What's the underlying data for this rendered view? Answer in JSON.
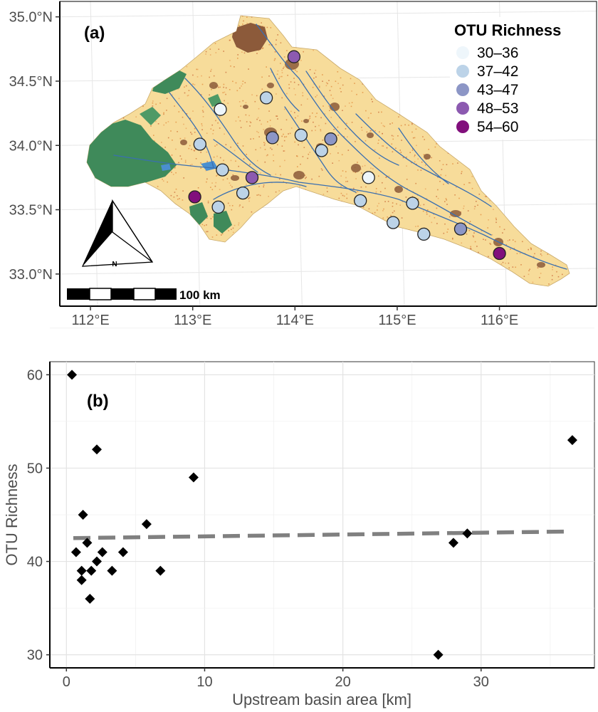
{
  "chart_data": [
    {
      "type": "scatter",
      "panel_label": "(a)",
      "map_kind": "river basin sampling-site map",
      "x_ticks": [
        "112°E",
        "113°E",
        "114°E",
        "115°E",
        "116°E"
      ],
      "y_ticks": [
        "33.0°N",
        "33.5°N",
        "34.0°N",
        "34.5°N",
        "35.0°N"
      ],
      "xlim": [
        111.7,
        116.95
      ],
      "ylim": [
        32.75,
        35.12
      ],
      "legend": {
        "title": "OTU Richness",
        "placement": "top-right",
        "classes": [
          {
            "label": "30–36",
            "color": "#eef6fb"
          },
          {
            "label": "37–42",
            "color": "#bcd3e8"
          },
          {
            "label": "43–47",
            "color": "#8c96c6"
          },
          {
            "label": "48–53",
            "color": "#8c5ab0"
          },
          {
            "label": "54–60",
            "color": "#810f7c"
          }
        ]
      },
      "scale_bar": "100 km",
      "north_label": "N",
      "sites": [
        {
          "lon": 113.27,
          "lat": 34.28,
          "cls": 0
        },
        {
          "lon": 113.72,
          "lat": 34.37,
          "cls": 1
        },
        {
          "lon": 113.99,
          "lat": 34.69,
          "cls": 3
        },
        {
          "lon": 113.07,
          "lat": 34.01,
          "cls": 1
        },
        {
          "lon": 113.78,
          "lat": 34.06,
          "cls": 2
        },
        {
          "lon": 114.06,
          "lat": 34.08,
          "cls": 1
        },
        {
          "lon": 114.26,
          "lat": 33.96,
          "cls": 1
        },
        {
          "lon": 114.35,
          "lat": 34.05,
          "cls": 2
        },
        {
          "lon": 113.29,
          "lat": 33.81,
          "cls": 1
        },
        {
          "lon": 113.58,
          "lat": 33.75,
          "cls": 3
        },
        {
          "lon": 113.49,
          "lat": 33.63,
          "cls": 1
        },
        {
          "lon": 113.02,
          "lat": 33.6,
          "cls": 4
        },
        {
          "lon": 113.25,
          "lat": 33.52,
          "cls": 1
        },
        {
          "lon": 114.72,
          "lat": 33.75,
          "cls": 0
        },
        {
          "lon": 114.64,
          "lat": 33.57,
          "cls": 1
        },
        {
          "lon": 115.15,
          "lat": 33.55,
          "cls": 1
        },
        {
          "lon": 114.96,
          "lat": 33.4,
          "cls": 1
        },
        {
          "lon": 115.26,
          "lat": 33.31,
          "cls": 1
        },
        {
          "lon": 115.62,
          "lat": 33.35,
          "cls": 2
        },
        {
          "lon": 116.0,
          "lat": 33.16,
          "cls": 4
        }
      ],
      "colors": {
        "basin": "#f7dc9a",
        "forest": "#3f8a5a",
        "urban": "#8c5a3a",
        "river": "#3a6fb0",
        "reservoir": "#4a8fd0"
      }
    },
    {
      "type": "scatter",
      "panel_label": "(b)",
      "xlabel": "Upstream basin area [km]",
      "ylabel": "OTU Richness",
      "xlim": [
        -1.2,
        38.2
      ],
      "ylim": [
        28.6,
        61.4
      ],
      "x_ticks": [
        0,
        10,
        20,
        30
      ],
      "y_ticks": [
        30,
        40,
        50,
        60
      ],
      "grid": true,
      "points": [
        {
          "x": 0.4,
          "y": 60
        },
        {
          "x": 2.2,
          "y": 52
        },
        {
          "x": 9.2,
          "y": 49
        },
        {
          "x": 1.2,
          "y": 45
        },
        {
          "x": 5.8,
          "y": 44
        },
        {
          "x": 1.5,
          "y": 42
        },
        {
          "x": 0.7,
          "y": 41
        },
        {
          "x": 2.6,
          "y": 41
        },
        {
          "x": 4.1,
          "y": 41
        },
        {
          "x": 2.2,
          "y": 40
        },
        {
          "x": 1.1,
          "y": 39
        },
        {
          "x": 1.8,
          "y": 39
        },
        {
          "x": 3.3,
          "y": 39
        },
        {
          "x": 6.8,
          "y": 39
        },
        {
          "x": 1.1,
          "y": 38
        },
        {
          "x": 1.7,
          "y": 36
        },
        {
          "x": 36.6,
          "y": 53
        },
        {
          "x": 29.0,
          "y": 43
        },
        {
          "x": 28.0,
          "y": 42
        },
        {
          "x": 26.9,
          "y": 30
        }
      ],
      "trend": {
        "style": "dashed",
        "color": "#808080",
        "x": [
          0.5,
          36.0
        ],
        "y": [
          42.5,
          43.2
        ]
      },
      "marker_color": "#000000"
    }
  ]
}
